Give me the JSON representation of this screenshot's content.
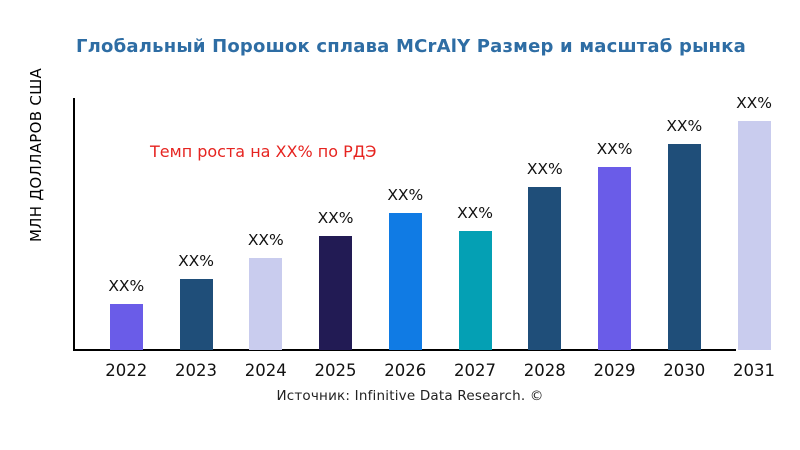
{
  "page": {
    "background": "#ffffff"
  },
  "header": {
    "title": "Глобальный Порошок сплава MCrAlY Размер и масштаб рынка",
    "title_color": "#2E6DA4"
  },
  "chart_data": {
    "type": "bar",
    "title": "Глобальный Порошок сплава MCrAlY Размер и масштаб рынка",
    "ylabel": "МЛН ДОЛЛАРОВ США",
    "xlabel": "",
    "categories": [
      "2022",
      "2023",
      "2024",
      "2025",
      "2026",
      "2027",
      "2028",
      "2029",
      "2030",
      "2031"
    ],
    "bar_value_labels": [
      "XX%",
      "XX%",
      "XX%",
      "XX%",
      "XX%",
      "XX%",
      "XX%",
      "XX%",
      "XX%",
      "XX%"
    ],
    "relative_heights_pct_of_max": [
      20,
      31,
      40,
      50,
      60,
      52,
      71,
      80,
      90,
      100
    ],
    "bar_colors": [
      "#6A5CE8",
      "#1F4E79",
      "#C9CCEE",
      "#221B54",
      "#107BE4",
      "#04A0B4",
      "#1F4E79",
      "#6A5CE8",
      "#1F4E79",
      "#C9CCEE"
    ],
    "annotation": {
      "text": "Темп роста на XX% по РДЭ",
      "color": "#E62420"
    },
    "grid": false,
    "legend": "none",
    "axis_color": "#000000",
    "tick_label_color": "#111111"
  },
  "footer": {
    "source": "Источник: Infinitive Data Research. ©"
  }
}
